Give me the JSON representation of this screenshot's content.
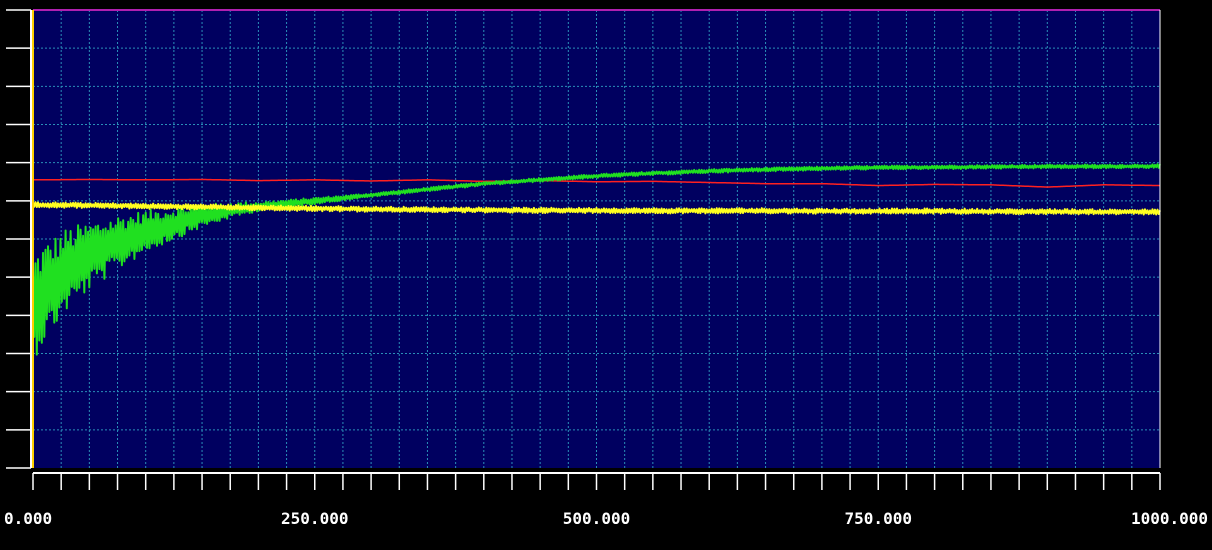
{
  "chart_data": {
    "type": "line",
    "title": "",
    "xlabel": "",
    "ylabel": "",
    "xlim": [
      0,
      1000
    ],
    "ylim": [
      0,
      12
    ],
    "grid": true,
    "legend": "none",
    "x_tick_labels": [
      {
        "value": 0,
        "label": "0.000"
      },
      {
        "value": 250,
        "label": "250.000"
      },
      {
        "value": 500,
        "label": "500.000"
      },
      {
        "value": 750,
        "label": "750.000"
      },
      {
        "value": 1000,
        "label": "1000.000"
      }
    ],
    "x_grid_step": 25,
    "y_grid_step": 1,
    "x_minor_tick_step": 25,
    "y_minor_tick_step": 1,
    "colors": {
      "plot_background": "#000060",
      "page_background": "#000000",
      "axis": "#FFFFFF",
      "grid": "#2A8FB8",
      "tick_label": "#FFFFFF",
      "top_line": "#B020B0",
      "start_marker": "#FFD000"
    },
    "series": [
      {
        "color": "#FF2020",
        "points": [
          [
            0,
            7.55
          ],
          [
            50,
            7.56
          ],
          [
            100,
            7.55
          ],
          [
            150,
            7.56
          ],
          [
            200,
            7.53
          ],
          [
            250,
            7.55
          ],
          [
            300,
            7.52
          ],
          [
            350,
            7.55
          ],
          [
            400,
            7.51
          ],
          [
            450,
            7.53
          ],
          [
            500,
            7.5
          ],
          [
            550,
            7.51
          ],
          [
            600,
            7.48
          ],
          [
            650,
            7.45
          ],
          [
            700,
            7.45
          ],
          [
            750,
            7.4
          ],
          [
            800,
            7.43
          ],
          [
            850,
            7.42
          ],
          [
            900,
            7.36
          ],
          [
            950,
            7.42
          ],
          [
            1000,
            7.4
          ]
        ]
      },
      {
        "color": "#20E020",
        "points": [
          [
            0,
            4.2
          ],
          [
            10,
            4.6
          ],
          [
            20,
            4.9
          ],
          [
            30,
            5.2
          ],
          [
            50,
            5.55
          ],
          [
            75,
            5.9
          ],
          [
            100,
            6.2
          ],
          [
            125,
            6.4
          ],
          [
            150,
            6.6
          ],
          [
            175,
            6.75
          ],
          [
            200,
            6.85
          ],
          [
            250,
            7.0
          ],
          [
            300,
            7.15
          ],
          [
            350,
            7.3
          ],
          [
            400,
            7.45
          ],
          [
            450,
            7.55
          ],
          [
            500,
            7.65
          ],
          [
            550,
            7.72
          ],
          [
            600,
            7.78
          ],
          [
            650,
            7.82
          ],
          [
            700,
            7.85
          ],
          [
            750,
            7.87
          ],
          [
            800,
            7.88
          ],
          [
            850,
            7.89
          ],
          [
            900,
            7.9
          ],
          [
            950,
            7.9
          ],
          [
            1000,
            7.91
          ]
        ],
        "noise": [
          {
            "x": 0,
            "amp": 1.4
          },
          {
            "x": 50,
            "amp": 0.9
          },
          {
            "x": 100,
            "amp": 0.55
          },
          {
            "x": 150,
            "amp": 0.3
          },
          {
            "x": 200,
            "amp": 0.12
          },
          {
            "x": 300,
            "amp": 0.05
          },
          {
            "x": 1000,
            "amp": 0.05
          }
        ]
      },
      {
        "color": "#FFFF20",
        "points": [
          [
            0,
            6.9
          ],
          [
            50,
            6.88
          ],
          [
            100,
            6.86
          ],
          [
            150,
            6.84
          ],
          [
            200,
            6.82
          ],
          [
            250,
            6.8
          ],
          [
            300,
            6.78
          ],
          [
            350,
            6.77
          ],
          [
            400,
            6.76
          ],
          [
            450,
            6.75
          ],
          [
            500,
            6.75
          ],
          [
            550,
            6.74
          ],
          [
            600,
            6.74
          ],
          [
            650,
            6.74
          ],
          [
            700,
            6.73
          ],
          [
            750,
            6.73
          ],
          [
            800,
            6.73
          ],
          [
            850,
            6.72
          ],
          [
            900,
            6.72
          ],
          [
            950,
            6.71
          ],
          [
            1000,
            6.71
          ]
        ],
        "noise": [
          {
            "x": 0,
            "amp": 0.07
          },
          {
            "x": 1000,
            "amp": 0.07
          }
        ]
      }
    ]
  }
}
